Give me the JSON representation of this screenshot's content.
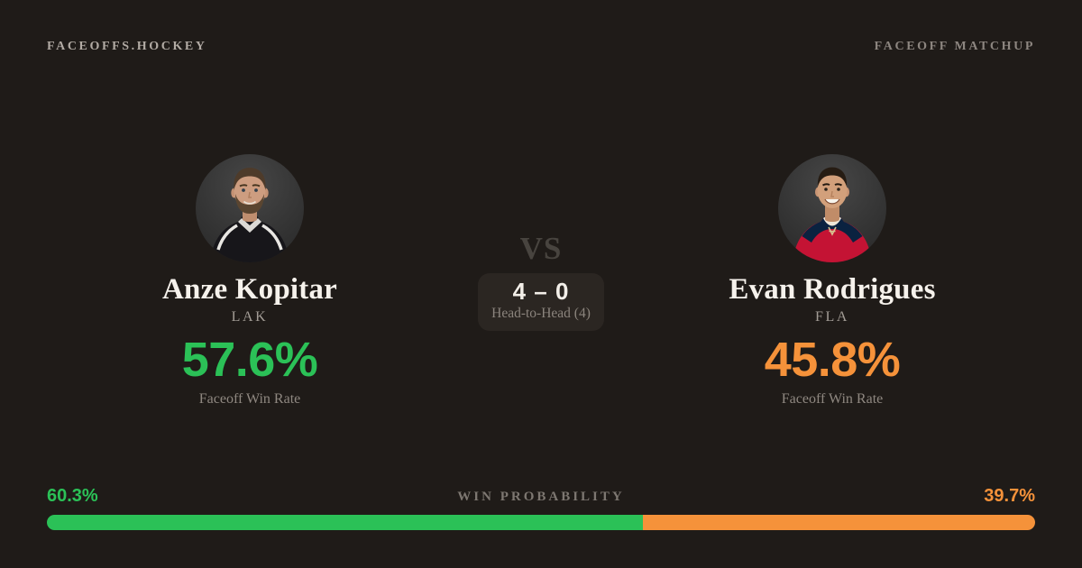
{
  "colors": {
    "background": "#1f1b18",
    "green": "#2bc157",
    "orange": "#f5923a",
    "bar_track": "#2a2522"
  },
  "header": {
    "brand": "FACEOFFS.HOCKEY",
    "page_label": "FACEOFF MATCHUP"
  },
  "matchup": {
    "vs": "VS",
    "head_to_head": {
      "score": "4 – 0",
      "caption": "Head-to-Head (4)"
    },
    "player_left": {
      "name": "Anze Kopitar",
      "team": "LAK",
      "win_rate": "57.6%",
      "win_rate_label": "Faceoff Win Rate"
    },
    "player_right": {
      "name": "Evan Rodrigues",
      "team": "FLA",
      "win_rate": "45.8%",
      "win_rate_label": "Faceoff Win Rate"
    }
  },
  "win_probability": {
    "label": "WIN PROBABILITY",
    "left": {
      "text": "60.3%",
      "value": 60.3
    },
    "right": {
      "text": "39.7%",
      "value": 39.7
    }
  }
}
